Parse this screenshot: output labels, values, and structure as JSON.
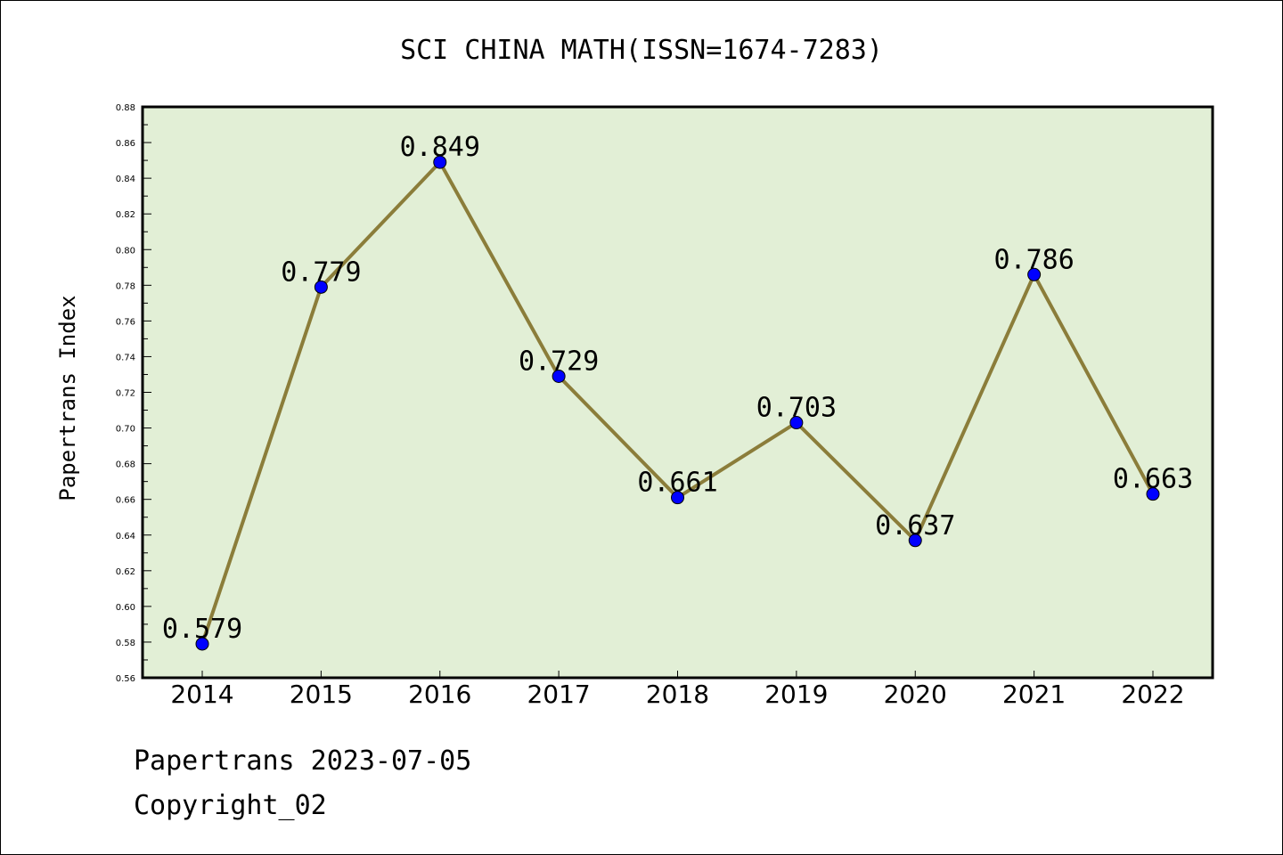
{
  "chart_data": {
    "type": "line",
    "title": "SCI CHINA MATH(ISSN=1674-7283)",
    "ylabel": "Papertrans Index",
    "xlabel": "",
    "categories": [
      "2014",
      "2015",
      "2016",
      "2017",
      "2018",
      "2019",
      "2020",
      "2021",
      "2022"
    ],
    "values": [
      0.579,
      0.779,
      0.849,
      0.729,
      0.661,
      0.703,
      0.637,
      0.786,
      0.663
    ],
    "data_labels": [
      "0.579",
      "0.779",
      "0.849",
      "0.729",
      "0.661",
      "0.703",
      "0.637",
      "0.786",
      "0.663"
    ],
    "ylim": [
      0.56,
      0.88
    ],
    "yticks": [
      "0.56",
      "0.58",
      "0.60",
      "0.62",
      "0.64",
      "0.66",
      "0.68",
      "0.70",
      "0.72",
      "0.74",
      "0.76",
      "0.78",
      "0.80",
      "0.82",
      "0.84",
      "0.86",
      "0.88"
    ],
    "grid": false,
    "colors": {
      "plot_background": "#e2efd6",
      "line": "#8b7d3a",
      "marker": "#0000ff"
    }
  },
  "footer": {
    "line1": "Papertrans 2023-07-05",
    "line2": "Copyright_02"
  }
}
